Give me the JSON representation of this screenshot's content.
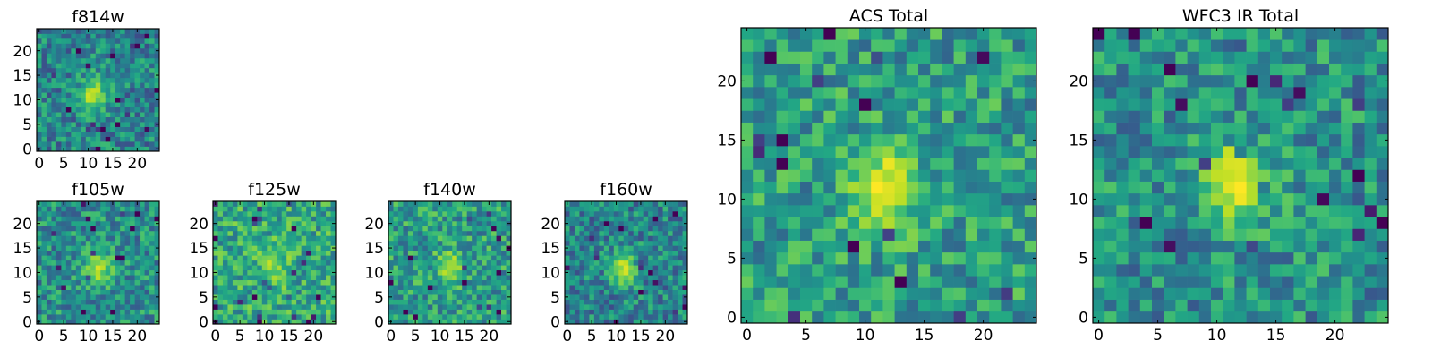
{
  "chart_data": [
    {
      "type": "heatmap",
      "title": "f814w",
      "xticks": [
        "0",
        "5",
        "10",
        "15",
        "20"
      ],
      "yticks": [
        "0",
        "5",
        "10",
        "15",
        "20"
      ],
      "xlim": [
        0,
        25
      ],
      "ylim": [
        0,
        25
      ],
      "grid": false,
      "colormap": "viridis",
      "source_center": [
        11.5,
        11.5
      ],
      "source_peak_value": 0.9,
      "background_value": 0.45
    },
    {
      "type": "heatmap",
      "title": "f105w",
      "xticks": [
        "0",
        "5",
        "10",
        "15",
        "20"
      ],
      "yticks": [
        "0",
        "5",
        "10",
        "15",
        "20"
      ],
      "xlim": [
        0,
        25
      ],
      "ylim": [
        0,
        25
      ],
      "grid": false,
      "colormap": "viridis",
      "source_center": [
        12.5,
        11.5
      ],
      "source_peak_value": 0.9,
      "background_value": 0.5
    },
    {
      "type": "heatmap",
      "title": "f125w",
      "xticks": [
        "0",
        "5",
        "10",
        "15",
        "20"
      ],
      "yticks": [
        "0",
        "5",
        "10",
        "15",
        "20"
      ],
      "xlim": [
        0,
        25
      ],
      "ylim": [
        0,
        25
      ],
      "grid": false,
      "colormap": "viridis",
      "source_center": [
        12.5,
        11.5
      ],
      "source_peak_value": 0.85,
      "background_value": 0.6
    },
    {
      "type": "heatmap",
      "title": "f140w",
      "xticks": [
        "0",
        "5",
        "10",
        "15",
        "20"
      ],
      "yticks": [
        "0",
        "5",
        "10",
        "15",
        "20"
      ],
      "xlim": [
        0,
        25
      ],
      "ylim": [
        0,
        25
      ],
      "grid": false,
      "colormap": "viridis",
      "source_center": [
        12.5,
        11.5
      ],
      "source_peak_value": 0.85,
      "background_value": 0.55
    },
    {
      "type": "heatmap",
      "title": "f160w",
      "xticks": [
        "0",
        "5",
        "10",
        "15",
        "20"
      ],
      "yticks": [
        "0",
        "5",
        "10",
        "15",
        "20"
      ],
      "xlim": [
        0,
        25
      ],
      "ylim": [
        0,
        25
      ],
      "grid": false,
      "colormap": "viridis",
      "source_center": [
        12.0,
        11.5
      ],
      "source_peak_value": 0.9,
      "background_value": 0.45
    },
    {
      "type": "heatmap",
      "title": "ACS Total",
      "xticks": [
        "0",
        "5",
        "10",
        "15",
        "20"
      ],
      "yticks": [
        "0",
        "5",
        "10",
        "15",
        "20"
      ],
      "xlim": [
        0,
        25
      ],
      "ylim": [
        0,
        25
      ],
      "grid": false,
      "colormap": "viridis",
      "source_center": [
        12.0,
        11.5
      ],
      "source_peak_value": 1.0,
      "background_value": 0.55
    },
    {
      "type": "heatmap",
      "title": "WFC3 IR Total",
      "xticks": [
        "0",
        "5",
        "10",
        "15",
        "20"
      ],
      "yticks": [
        "0",
        "5",
        "10",
        "15",
        "20"
      ],
      "xlim": [
        0,
        25
      ],
      "ylim": [
        0,
        25
      ],
      "grid": false,
      "colormap": "viridis",
      "source_center": [
        12.0,
        12.0
      ],
      "source_peak_value": 1.0,
      "background_value": 0.5
    }
  ]
}
